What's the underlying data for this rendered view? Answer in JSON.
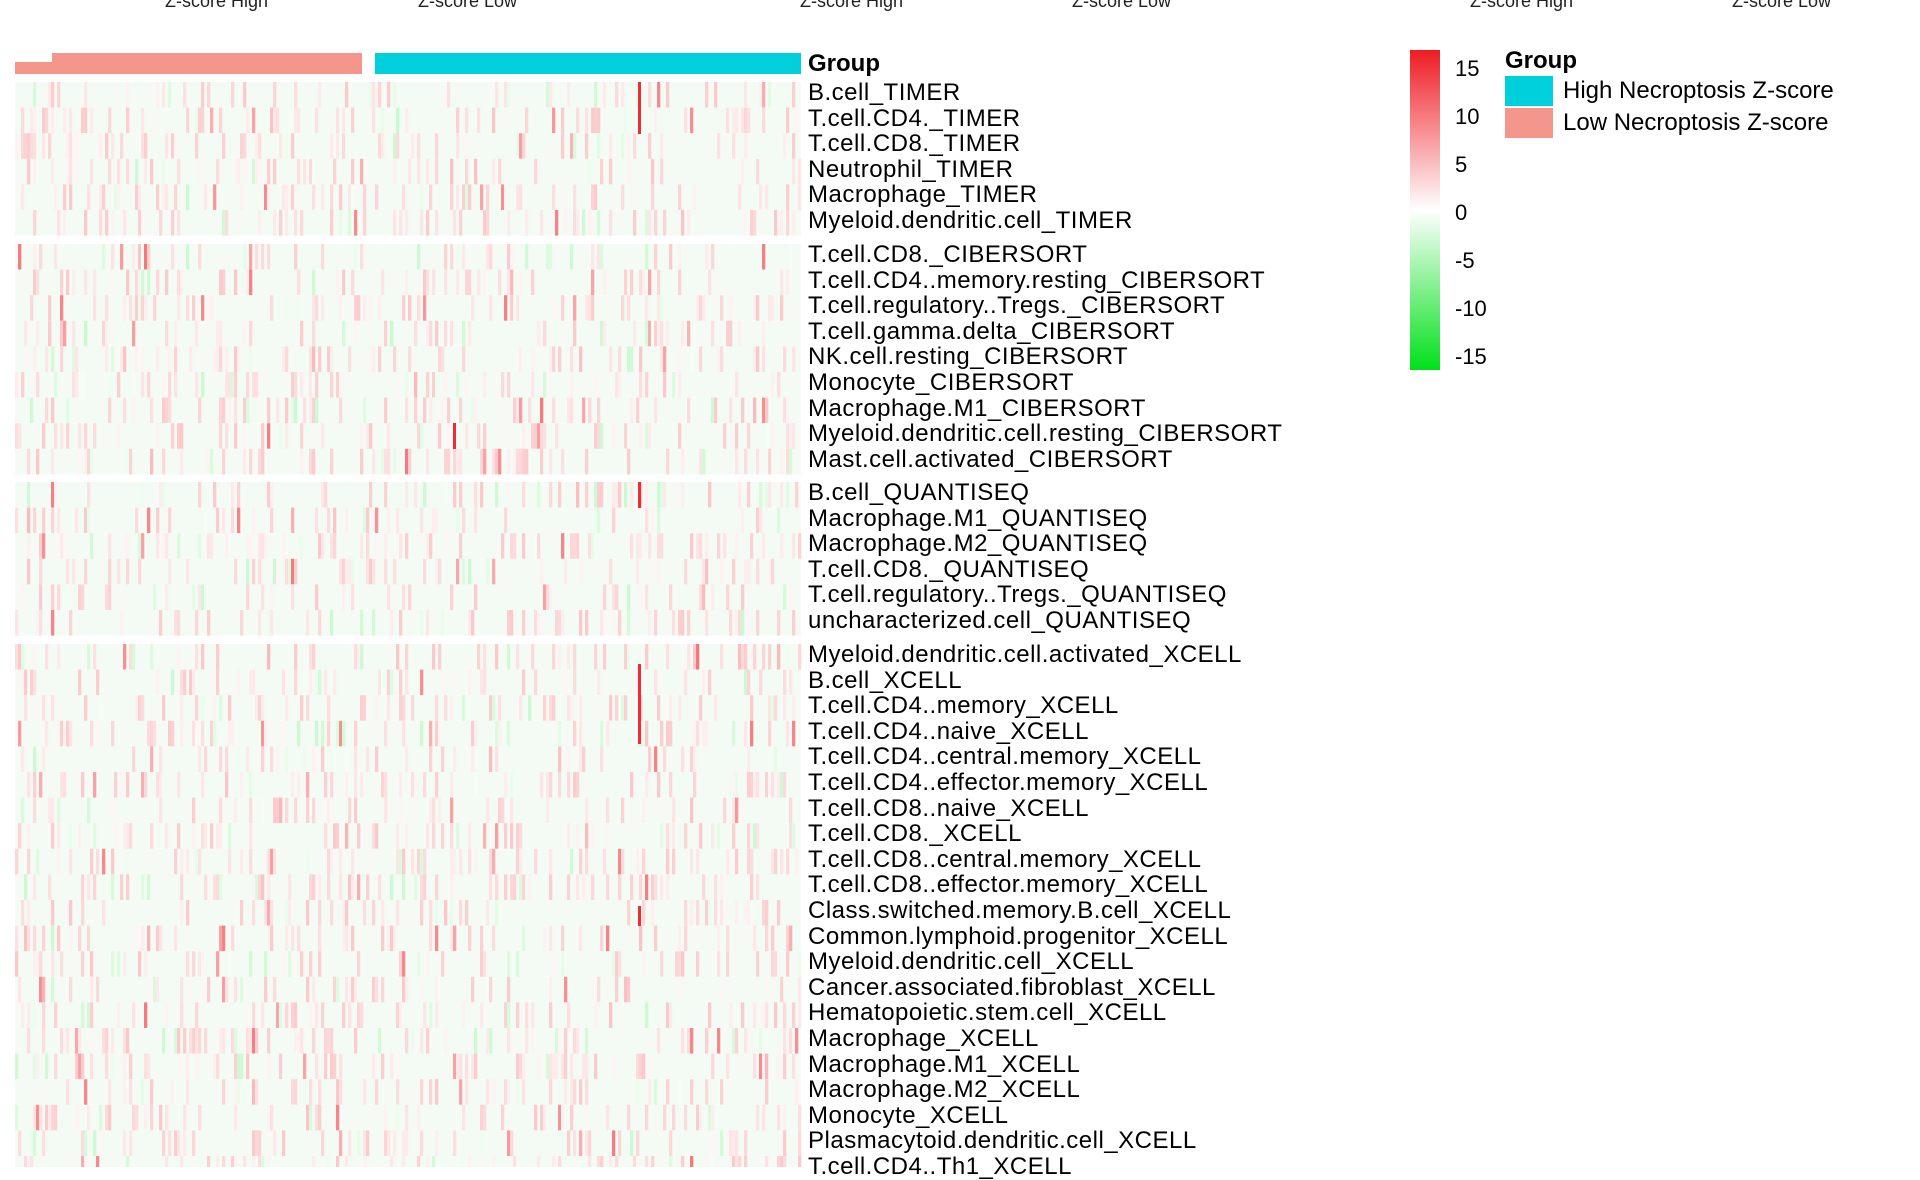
{
  "top_labels": [
    "Z-score High",
    "Z-score Low",
    "Z-score High",
    "Z-score Low",
    "Z-score High",
    "Z-score Low"
  ],
  "chart_data": {
    "type": "heatmap",
    "annotation_title": "Group",
    "groups": [
      {
        "name": "Low Necroptosis Z-score",
        "color": "#f4968c"
      },
      {
        "name": "High Necroptosis Z-score",
        "color": "#00cfdc"
      }
    ],
    "row_blocks": [
      {
        "rows": [
          "B.cell_TIMER",
          "T.cell.CD4._TIMER",
          "T.cell.CD8._TIMER",
          "Neutrophil_TIMER",
          "Macrophage_TIMER",
          "Myeloid.dendritic.cell_TIMER"
        ]
      },
      {
        "rows": [
          "T.cell.CD8._CIBERSORT",
          "T.cell.CD4..memory.resting_CIBERSORT",
          "T.cell.regulatory..Tregs._CIBERSORT",
          "T.cell.gamma.delta_CIBERSORT",
          "NK.cell.resting_CIBERSORT",
          "Monocyte_CIBERSORT",
          "Macrophage.M1_CIBERSORT",
          "Myeloid.dendritic.cell.resting_CIBERSORT",
          "Mast.cell.activated_CIBERSORT"
        ]
      },
      {
        "rows": [
          "B.cell_QUANTISEQ",
          "Macrophage.M1_QUANTISEQ",
          "Macrophage.M2_QUANTISEQ",
          "T.cell.CD8._QUANTISEQ",
          "T.cell.regulatory..Tregs._QUANTISEQ",
          "uncharacterized.cell_QUANTISEQ"
        ]
      },
      {
        "rows": [
          "Myeloid.dendritic.cell.activated_XCELL",
          "B.cell_XCELL",
          "T.cell.CD4..memory_XCELL",
          "T.cell.CD4..naive_XCELL",
          "T.cell.CD4..central.memory_XCELL",
          "T.cell.CD4..effector.memory_XCELL",
          "T.cell.CD8..naive_XCELL",
          "T.cell.CD8._XCELL",
          "T.cell.CD8..central.memory_XCELL",
          "T.cell.CD8..effector.memory_XCELL",
          "Class.switched.memory.B.cell_XCELL",
          "Common.lymphoid.progenitor_XCELL",
          "Myeloid.dendritic.cell_XCELL",
          "Cancer.associated.fibroblast_XCELL",
          "Hematopoietic.stem.cell_XCELL",
          "Macrophage_XCELL",
          "Macrophage.M1_XCELL",
          "Macrophage.M2_XCELL",
          "Monocyte_XCELL",
          "Plasmacytoid.dendritic.cell_XCELL",
          "T.cell.CD4..Th1_XCELL"
        ]
      }
    ],
    "colorbar": {
      "ticks": [
        15,
        10,
        5,
        0,
        -5,
        -10,
        -15
      ],
      "range": [
        -15,
        15
      ],
      "colors": {
        "high": "#ee1c24",
        "mid": "#ffffff",
        "low": "#00e01a"
      }
    },
    "legend": {
      "title": "Group",
      "entries": [
        {
          "label": "High Necroptosis Z-score",
          "color": "#00cfdc"
        },
        {
          "label": "Low Necroptosis Z-score",
          "color": "#f4968c"
        }
      ]
    }
  }
}
